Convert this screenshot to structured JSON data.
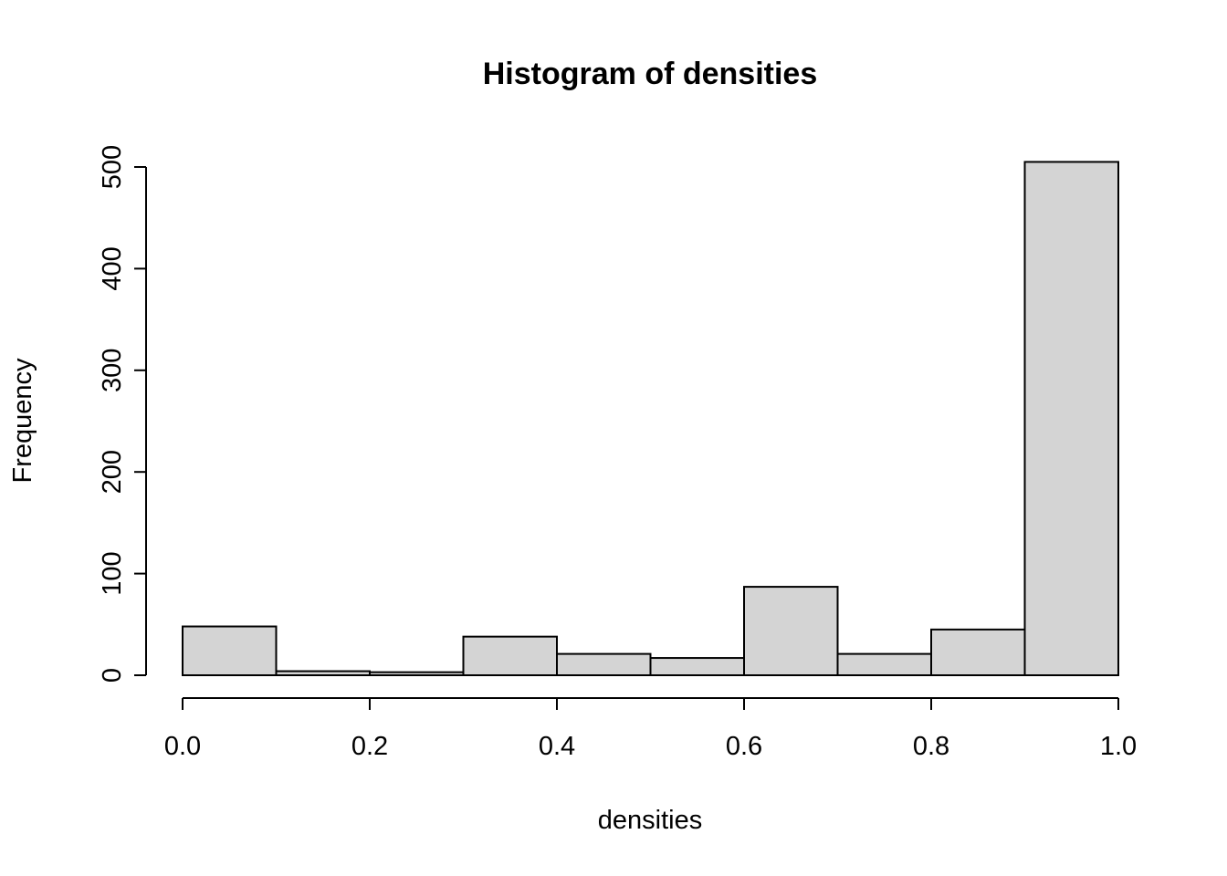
{
  "chart_data": {
    "type": "bar",
    "subtype": "histogram",
    "title": "Histogram of densities",
    "xlabel": "densities",
    "ylabel": "Frequency",
    "bin_edges": [
      0.0,
      0.1,
      0.2,
      0.3,
      0.4,
      0.5,
      0.6,
      0.7,
      0.8,
      0.9,
      1.0
    ],
    "counts": [
      48,
      4,
      3,
      38,
      21,
      17,
      87,
      21,
      45,
      505
    ],
    "x_ticks": [
      0.0,
      0.2,
      0.4,
      0.6,
      0.8,
      1.0
    ],
    "x_tick_labels": [
      "0.0",
      "0.2",
      "0.4",
      "0.6",
      "0.8",
      "1.0"
    ],
    "y_ticks": [
      0,
      100,
      200,
      300,
      400,
      500
    ],
    "y_tick_labels": [
      "0",
      "100",
      "200",
      "300",
      "400",
      "500"
    ],
    "xlim": [
      0.0,
      1.0
    ],
    "ylim": [
      0,
      500
    ],
    "grid": false,
    "legend": "none",
    "colors": {
      "bar_fill": "#d4d4d4",
      "bar_stroke": "#000000",
      "axis": "#000000",
      "background": "#ffffff"
    }
  }
}
